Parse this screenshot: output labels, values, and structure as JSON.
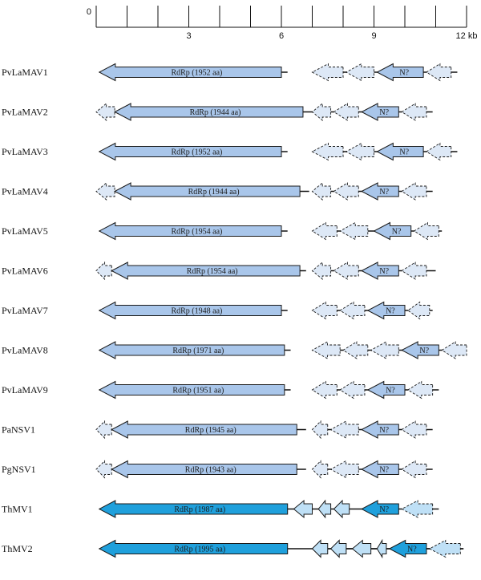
{
  "scale": {
    "ticks": [
      0,
      1,
      2,
      3,
      4,
      5,
      6,
      7,
      8,
      9,
      10,
      11,
      12
    ],
    "labels": [
      {
        "kb": 0,
        "text": "0"
      },
      {
        "kb": 3,
        "text": "3"
      },
      {
        "kb": 6,
        "text": "6"
      },
      {
        "kb": 9,
        "text": "9"
      },
      {
        "kb": 12,
        "text": "12 kb"
      }
    ]
  },
  "colors": {
    "rdrp": "#a9c6ea",
    "rdrp_bright": "#1fa0dc",
    "orf_light": "#dde8f6",
    "orf_n": "#a9c6ea",
    "orf_bright": "#bfe0f6",
    "orf_n_bright": "#1fa0dc",
    "stroke": "#1a1a1a"
  },
  "genomes": [
    {
      "name": "PvLaMAV1",
      "line": [
        [
          0.1,
          6.2
        ],
        [
          7.0,
          11.7
        ]
      ],
      "rdrp_label": "RdRp (1952 aa)",
      "bright": false,
      "genes": [
        [
          0.1,
          6.0,
          "rdrp",
          0
        ],
        [
          7.0,
          8.0,
          "orf",
          1
        ],
        [
          8.1,
          9.0,
          "orf",
          1
        ],
        [
          9.1,
          10.6,
          "n",
          0
        ],
        [
          10.7,
          11.5,
          "orf",
          1
        ]
      ]
    },
    {
      "name": "PvLaMAV2",
      "line": [
        [
          0.6,
          7.0
        ],
        [
          7.0,
          10.9
        ]
      ],
      "rdrp_label": "RdRp (1944 aa)",
      "bright": false,
      "genes": [
        [
          0.0,
          0.6,
          "orf",
          1
        ],
        [
          0.6,
          6.7,
          "rdrp",
          0
        ],
        [
          7.0,
          7.6,
          "orf",
          1
        ],
        [
          7.7,
          8.5,
          "orf",
          1
        ],
        [
          8.6,
          9.8,
          "n",
          0
        ],
        [
          9.9,
          10.7,
          "orf",
          1
        ]
      ]
    },
    {
      "name": "PvLaMAV3",
      "line": [
        [
          0.1,
          6.2
        ],
        [
          7.0,
          11.7
        ]
      ],
      "rdrp_label": "RdRp (1952 aa)",
      "bright": false,
      "genes": [
        [
          0.1,
          6.0,
          "rdrp",
          0
        ],
        [
          7.0,
          8.0,
          "orf",
          1
        ],
        [
          8.1,
          9.0,
          "orf",
          1
        ],
        [
          9.1,
          10.6,
          "n",
          0
        ],
        [
          10.7,
          11.5,
          "orf",
          1
        ]
      ]
    },
    {
      "name": "PvLaMAV4",
      "line": [
        [
          0.6,
          6.9
        ],
        [
          7.0,
          10.9
        ]
      ],
      "rdrp_label": "RdRp (1944 aa)",
      "bright": false,
      "genes": [
        [
          0.0,
          0.6,
          "orf",
          1
        ],
        [
          0.6,
          6.6,
          "rdrp",
          0
        ],
        [
          7.0,
          7.6,
          "orf",
          1
        ],
        [
          7.7,
          8.5,
          "orf",
          1
        ],
        [
          8.6,
          9.8,
          "n",
          0
        ],
        [
          9.9,
          10.7,
          "orf",
          1
        ]
      ]
    },
    {
      "name": "PvLaMAV5",
      "line": [
        [
          0.1,
          6.2
        ],
        [
          7.0,
          11.2
        ]
      ],
      "rdrp_label": "RdRp (1954 aa)",
      "bright": false,
      "genes": [
        [
          0.1,
          6.0,
          "rdrp",
          0
        ],
        [
          7.0,
          7.8,
          "orf",
          1
        ],
        [
          7.9,
          8.8,
          "orf",
          1
        ],
        [
          9.0,
          10.2,
          "n",
          0
        ],
        [
          10.3,
          11.1,
          "orf",
          1
        ]
      ]
    },
    {
      "name": "PvLaMAV6",
      "line": [
        [
          0.6,
          6.8
        ],
        [
          7.0,
          11.0
        ]
      ],
      "rdrp_label": "RdRp (1954 aa)",
      "bright": false,
      "genes": [
        [
          0.0,
          0.5,
          "orf",
          1
        ],
        [
          0.5,
          6.6,
          "rdrp",
          0
        ],
        [
          7.0,
          7.6,
          "orf",
          1
        ],
        [
          7.7,
          8.5,
          "orf",
          1
        ],
        [
          8.6,
          9.8,
          "n",
          0
        ],
        [
          9.9,
          10.7,
          "orf",
          1
        ]
      ]
    },
    {
      "name": "PvLaMAV7",
      "line": [
        [
          0.1,
          6.2
        ],
        [
          7.0,
          10.9
        ]
      ],
      "rdrp_label": "RdRp (1948 aa)",
      "bright": false,
      "genes": [
        [
          0.1,
          6.0,
          "rdrp",
          0
        ],
        [
          7.0,
          7.8,
          "orf",
          1
        ],
        [
          7.9,
          8.7,
          "orf",
          1
        ],
        [
          8.8,
          10.0,
          "n",
          0
        ],
        [
          10.1,
          10.8,
          "orf",
          1
        ]
      ]
    },
    {
      "name": "PvLaMAV8",
      "line": [
        [
          0.1,
          6.3
        ],
        [
          7.0,
          12.0
        ]
      ],
      "rdrp_label": "RdRp (1971 aa)",
      "bright": false,
      "genes": [
        [
          0.1,
          6.1,
          "rdrp",
          0
        ],
        [
          7.0,
          7.9,
          "orf",
          1
        ],
        [
          8.0,
          8.8,
          "orf",
          1
        ],
        [
          8.9,
          9.8,
          "orf",
          1
        ],
        [
          9.9,
          11.1,
          "n",
          0
        ],
        [
          11.2,
          12.0,
          "orf",
          1
        ]
      ]
    },
    {
      "name": "PvLaMAV9",
      "line": [
        [
          0.1,
          6.3
        ],
        [
          7.0,
          11.1
        ]
      ],
      "rdrp_label": "RdRp (1951 aa)",
      "bright": false,
      "genes": [
        [
          0.1,
          6.1,
          "rdrp",
          0
        ],
        [
          7.0,
          7.8,
          "orf",
          1
        ],
        [
          7.9,
          8.7,
          "orf",
          1
        ],
        [
          8.8,
          10.0,
          "n",
          0
        ],
        [
          10.1,
          10.9,
          "orf",
          1
        ]
      ]
    },
    {
      "name": "PaNSV1",
      "line": [
        [
          0.6,
          6.8
        ],
        [
          7.0,
          10.9
        ]
      ],
      "rdrp_label": "RdRp (1945 aa)",
      "bright": false,
      "genes": [
        [
          0.0,
          0.5,
          "orf",
          1
        ],
        [
          0.5,
          6.5,
          "rdrp",
          0
        ],
        [
          7.0,
          7.5,
          "orf",
          1
        ],
        [
          7.6,
          8.5,
          "orf",
          1
        ],
        [
          8.6,
          9.8,
          "n",
          0
        ],
        [
          9.9,
          10.7,
          "orf",
          1
        ]
      ]
    },
    {
      "name": "PgNSV1",
      "line": [
        [
          0.6,
          6.8
        ],
        [
          7.0,
          10.9
        ]
      ],
      "rdrp_label": "RdRp (1943 aa)",
      "bright": false,
      "genes": [
        [
          0.0,
          0.5,
          "orf",
          1
        ],
        [
          0.5,
          6.5,
          "rdrp",
          0
        ],
        [
          7.0,
          7.5,
          "orf",
          1
        ],
        [
          7.6,
          8.5,
          "orf",
          1
        ],
        [
          8.6,
          9.8,
          "n",
          0
        ],
        [
          9.9,
          10.7,
          "orf",
          1
        ]
      ]
    },
    {
      "name": "ThMV1",
      "line": [
        [
          0.1,
          11.1
        ]
      ],
      "rdrp_label": "RdRp (1987 aa)",
      "bright": true,
      "genes": [
        [
          0.1,
          6.2,
          "rdrp",
          0
        ],
        [
          6.4,
          7.0,
          "orf",
          0
        ],
        [
          7.2,
          7.6,
          "orf",
          0
        ],
        [
          7.7,
          8.2,
          "orf",
          0
        ],
        [
          8.6,
          9.8,
          "n",
          0
        ],
        [
          9.9,
          10.9,
          "orf",
          1
        ]
      ]
    },
    {
      "name": "ThMV2",
      "line": [
        [
          0.1,
          11.9
        ],
        [
          7.0,
          11.9
        ]
      ],
      "rdrp_label": "RdRp (1995 aa)",
      "bright": true,
      "genes": [
        [
          0.1,
          6.2,
          "rdrp",
          0
        ],
        [
          7.0,
          7.5,
          "orf",
          0
        ],
        [
          7.6,
          8.1,
          "orf",
          0
        ],
        [
          8.3,
          8.9,
          "orf",
          0
        ],
        [
          9.1,
          9.4,
          "orf",
          0
        ],
        [
          9.5,
          10.7,
          "n",
          0
        ],
        [
          10.8,
          11.8,
          "orf",
          1
        ]
      ]
    }
  ],
  "n_label": "N?"
}
